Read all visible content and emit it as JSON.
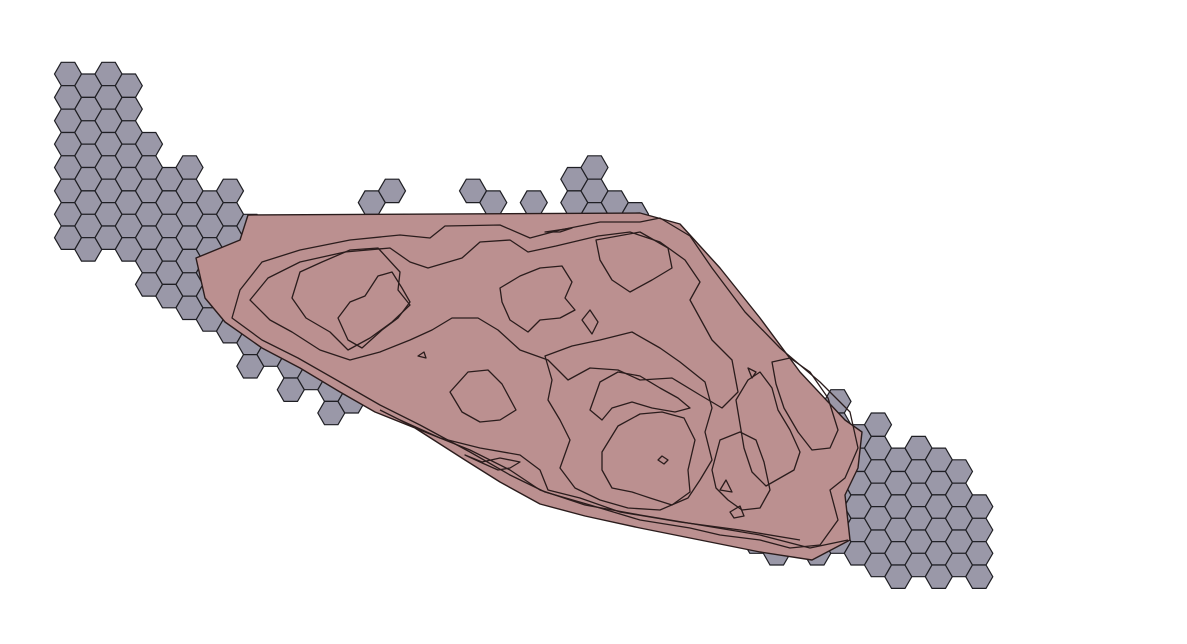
{
  "map": {
    "background_color": "#ffffff",
    "hex_grid": {
      "fill_color": "#9a98a8",
      "stroke_color": "#1f1f24",
      "shape": "hexagon",
      "orientation": "flat-top"
    },
    "terrain_overlay": {
      "fill_color": "#bb9090",
      "stroke_color": "#2a1c1c",
      "contour_style": "topographic contour lines"
    }
  }
}
